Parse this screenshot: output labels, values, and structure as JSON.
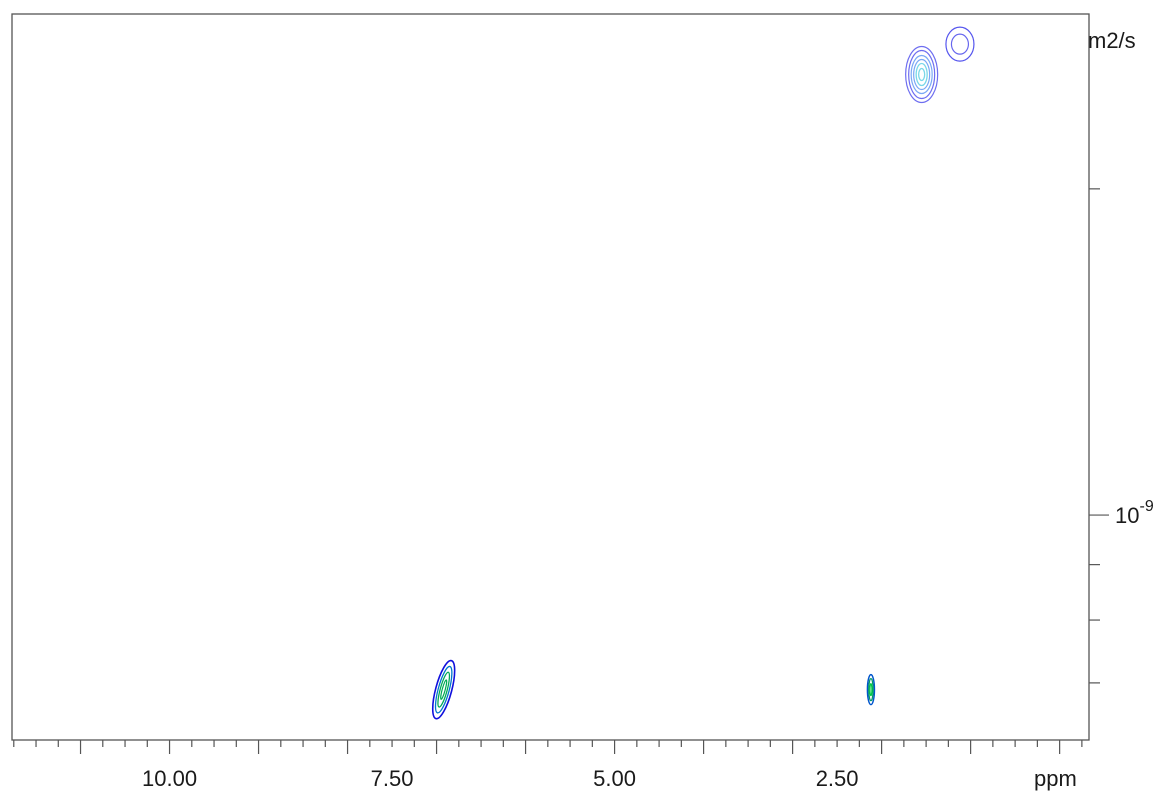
{
  "chart_data": {
    "type": "contour",
    "x_axis": {
      "unit": "ppm",
      "range": [
        11.77,
        -0.33
      ],
      "reversed": true,
      "tick_labels": [
        "10.00",
        "7.50",
        "5.00",
        "2.50"
      ],
      "tick_values": [
        10.0,
        7.5,
        5.0,
        2.5
      ]
    },
    "y_axis": {
      "unit": "m2/s",
      "scale": "log",
      "position": "right",
      "range": [
        6.2e-10,
        2.9e-09
      ],
      "tick_labels": [
        {
          "base": "10",
          "exp": "-9"
        }
      ],
      "tick_values": [
        1e-09
      ]
    },
    "peaks": [
      {
        "x": 6.92,
        "y": 6.9e-10,
        "shape": "elongated",
        "colors": [
          "#1010dd",
          "#00aa55",
          "#0077cc"
        ]
      },
      {
        "x": 2.12,
        "y": 6.9e-10,
        "shape": "narrow",
        "colors": [
          "#009966",
          "#0055cc",
          "#00cc44"
        ]
      },
      {
        "x": 1.55,
        "y": 2.55e-09,
        "shape": "oval",
        "colors": [
          "#6e6ef0",
          "#7aa8f5",
          "#7ad8e8"
        ]
      },
      {
        "x": 1.12,
        "y": 2.72e-09,
        "shape": "circle",
        "colors": [
          "#5555ee",
          "#6666ee"
        ]
      }
    ],
    "colors": {
      "frame": "#555555",
      "contour_blue": "#4040e0",
      "contour_cyan": "#5fd0e0",
      "contour_green": "#00b050"
    }
  }
}
